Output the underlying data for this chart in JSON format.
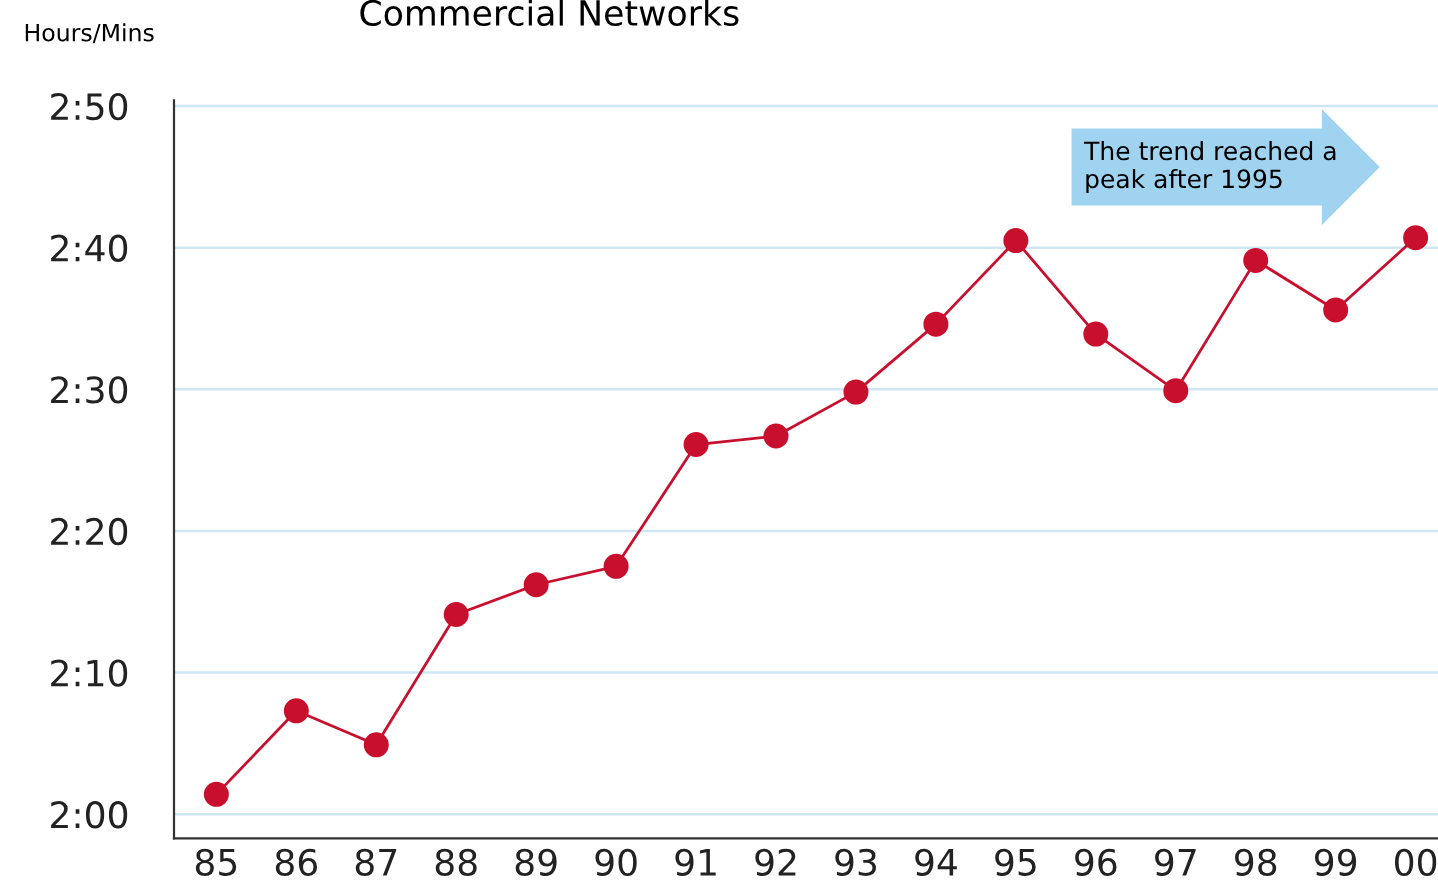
{
  "chart_data": {
    "type": "line",
    "title": "Commercial Networks",
    "ylabel": "Hours/Mins",
    "categories": [
      "85",
      "86",
      "87",
      "88",
      "89",
      "90",
      "91",
      "92",
      "93",
      "94",
      "95",
      "96",
      "97",
      "98",
      "99",
      "00"
    ],
    "series": [
      {
        "color": "#c8102e",
        "values": [
          121.4,
          127.3,
          124.9,
          134.1,
          136.2,
          137.5,
          146.1,
          146.7,
          149.8,
          154.6,
          160.5,
          153.9,
          149.9,
          159.1,
          155.6,
          160.7
        ]
      }
    ],
    "ylim": [
      118.3,
      170.4
    ],
    "yticks": [
      {
        "value": 120,
        "label": "2:00"
      },
      {
        "value": 130,
        "label": "2:10"
      },
      {
        "value": 140,
        "label": "2:20"
      },
      {
        "value": 150,
        "label": "2:30"
      },
      {
        "value": 160,
        "label": "2:40"
      },
      {
        "value": 170,
        "label": "2:50"
      }
    ],
    "grid": "y",
    "marker": "circle",
    "line_style": "solid",
    "annotations": [
      "The trend reached a\npeak after 1995"
    ]
  }
}
